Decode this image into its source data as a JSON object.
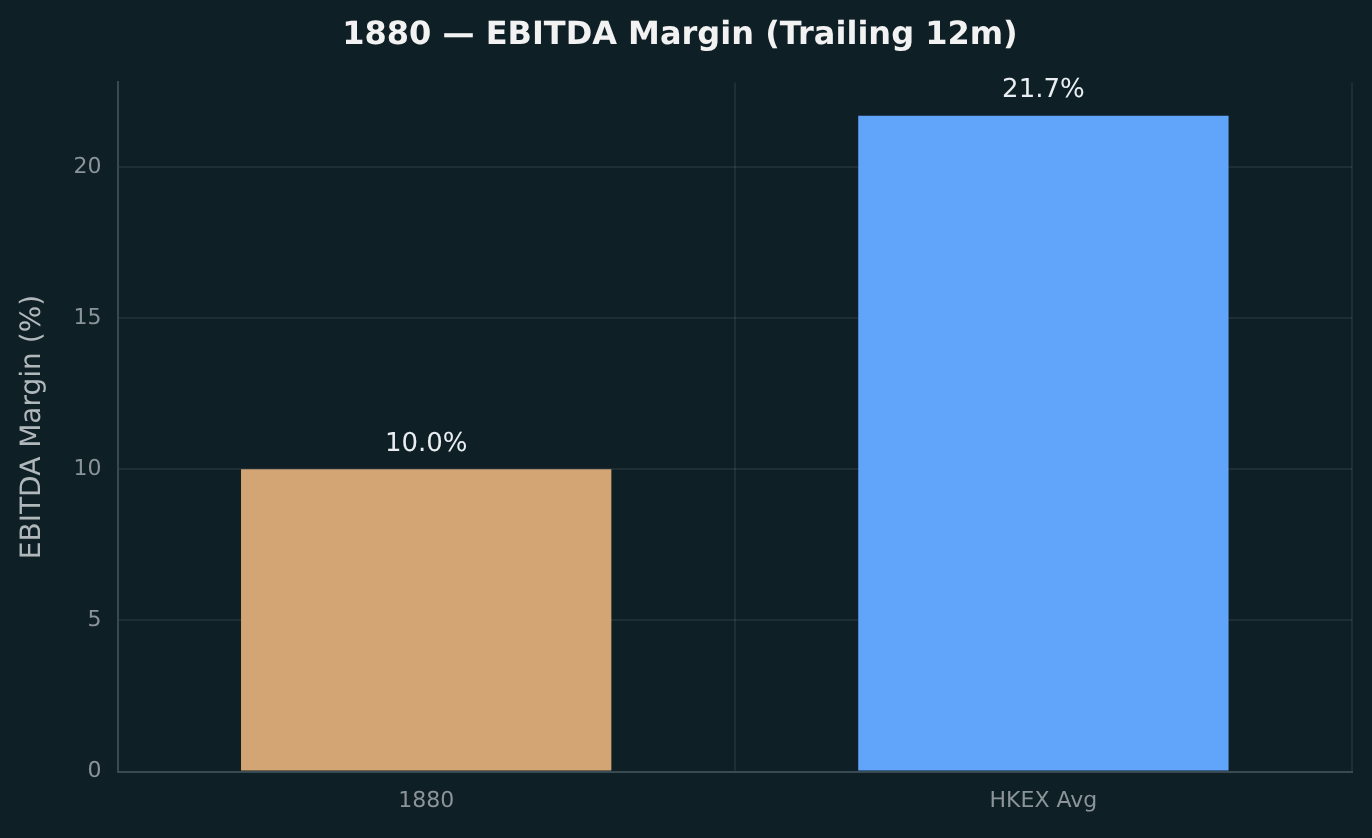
{
  "chart_data": {
    "type": "bar",
    "title": "1880 — EBITDA Margin (Trailing 12m)",
    "ylabel": "EBITDA Margin (%)",
    "categories": [
      "1880",
      "HKEX Avg"
    ],
    "values": [
      10.0,
      21.7
    ],
    "colors": [
      "#d4a574",
      "#60a5fa"
    ],
    "value_labels": [
      "10.0%",
      "21.7%"
    ],
    "ylim": [
      0,
      22.8
    ],
    "yticks": [
      0,
      5,
      10,
      15,
      20
    ],
    "grid": true,
    "legend": false
  }
}
